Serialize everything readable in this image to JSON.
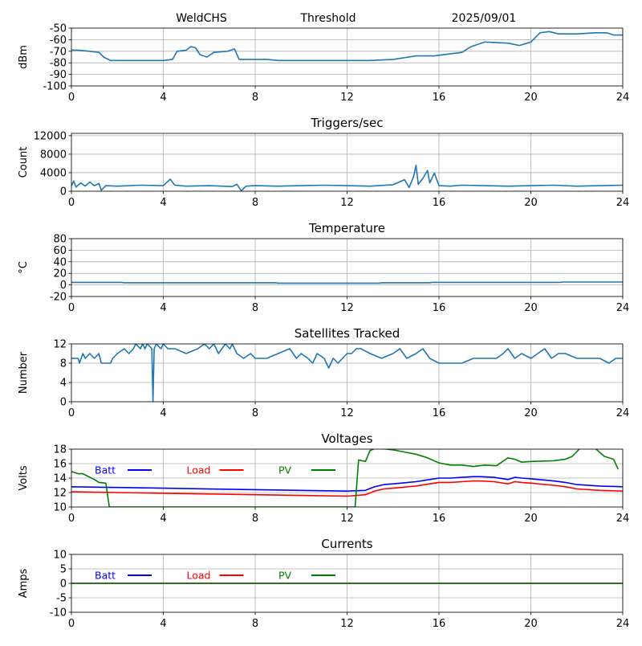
{
  "header": {
    "station": "WeldCHS",
    "mode": "Threshold",
    "date": "2025/09/01"
  },
  "chart_data": [
    {
      "type": "line",
      "title": "",
      "xlabel": "",
      "ylabel": "dBm",
      "xlim": [
        0,
        24
      ],
      "ylim": [
        -100,
        -50
      ],
      "xticks": [
        "0",
        "4",
        "8",
        "12",
        "16",
        "20",
        "24"
      ],
      "yticks": [
        "-100",
        "-90",
        "-80",
        "-70",
        "-60",
        "-50"
      ],
      "grid": true,
      "series": [
        {
          "color": "#1f77b4",
          "x": [
            0,
            0.3,
            0.8,
            1.2,
            1.4,
            1.7,
            2,
            3,
            4,
            4.4,
            4.6,
            5,
            5.2,
            5.4,
            5.6,
            5.9,
            6.2,
            6.8,
            7.1,
            7.3,
            8.5,
            9,
            10,
            11,
            12,
            12.5,
            13,
            14,
            15,
            15.8,
            16.2,
            17,
            17.4,
            18,
            19,
            19.5,
            20,
            20.4,
            20.8,
            21.2,
            22,
            22.8,
            23.3,
            23.6,
            24
          ],
          "y": [
            -69,
            -69,
            -70,
            -71,
            -75,
            -78,
            -78,
            -78,
            -78,
            -77,
            -70,
            -69,
            -66,
            -67,
            -73,
            -75,
            -71,
            -70,
            -68,
            -77,
            -77,
            -78,
            -78,
            -78,
            -78,
            -78,
            -78,
            -77,
            -74,
            -74,
            -73,
            -71,
            -66,
            -62,
            -63,
            -65,
            -62,
            -54,
            -53,
            -55,
            -55,
            -54,
            -54,
            -56,
            -56
          ]
        }
      ]
    },
    {
      "type": "line",
      "title": "Triggers/sec",
      "xlabel": "",
      "ylabel": "Count",
      "xlim": [
        0,
        24
      ],
      "ylim": [
        0,
        12500
      ],
      "xticks": [
        "0",
        "4",
        "8",
        "12",
        "16",
        "20",
        "24"
      ],
      "yticks": [
        "0",
        "4000",
        "8000",
        "12000"
      ],
      "grid": true,
      "series": [
        {
          "color": "#1f77b4",
          "x": [
            0,
            0.1,
            0.2,
            0.4,
            0.6,
            0.8,
            1.0,
            1.2,
            1.3,
            1.5,
            2,
            3,
            4,
            4.3,
            4.5,
            5,
            6,
            7,
            7.2,
            7.4,
            7.6,
            8,
            9,
            10,
            11,
            12,
            13,
            14,
            14.5,
            14.7,
            14.9,
            15.0,
            15.1,
            15.3,
            15.5,
            15.6,
            15.8,
            16,
            16.5,
            17,
            18,
            19,
            20,
            21,
            22,
            23,
            24
          ],
          "y": [
            1200,
            2200,
            900,
            1800,
            1100,
            2000,
            1200,
            1700,
            200,
            1200,
            1100,
            1300,
            1200,
            2600,
            1300,
            1100,
            1200,
            1000,
            1500,
            100,
            1100,
            1200,
            1100,
            1200,
            1300,
            1200,
            1100,
            1400,
            2500,
            800,
            3200,
            5600,
            1500,
            2800,
            4500,
            1800,
            3900,
            1200,
            1100,
            1300,
            1200,
            1100,
            1200,
            1300,
            1100,
            1200,
            1300
          ]
        }
      ]
    },
    {
      "type": "line",
      "title": "Temperature",
      "xlabel": "",
      "ylabel": "°C",
      "xlim": [
        0,
        24
      ],
      "ylim": [
        -20,
        80
      ],
      "xticks": [
        "0",
        "4",
        "8",
        "12",
        "16",
        "20",
        "24"
      ],
      "yticks": [
        "-20",
        "0",
        "20",
        "40",
        "60",
        "80"
      ],
      "grid": true,
      "series": [
        {
          "color": "#1f77b4",
          "x": [
            0,
            2.2,
            2.3,
            8.9,
            9.0,
            13.4,
            13.5,
            15.6,
            15.7,
            21.3,
            21.4,
            24
          ],
          "y": [
            4.5,
            4.5,
            3.8,
            3.8,
            3.0,
            3.0,
            3.8,
            3.8,
            4.5,
            4.5,
            5.0,
            5.0
          ]
        }
      ]
    },
    {
      "type": "line",
      "title": "Satellites Tracked",
      "xlabel": "",
      "ylabel": "Number",
      "xlim": [
        0,
        24
      ],
      "ylim": [
        0,
        12
      ],
      "xticks": [
        "0",
        "4",
        "8",
        "12",
        "16",
        "20",
        "24"
      ],
      "yticks": [
        "0",
        "4",
        "8",
        "12"
      ],
      "grid": true,
      "series": [
        {
          "color": "#1f77b4",
          "x": [
            0,
            0.3,
            0.35,
            0.5,
            0.6,
            0.8,
            1.0,
            1.2,
            1.3,
            1.7,
            1.8,
            2.0,
            2.3,
            2.5,
            2.7,
            2.8,
            3.0,
            3.1,
            3.2,
            3.3,
            3.5,
            3.55,
            3.6,
            3.7,
            3.9,
            4.0,
            4.2,
            4.5,
            5.0,
            5.5,
            5.8,
            6.0,
            6.2,
            6.4,
            6.7,
            6.9,
            7.0,
            7.2,
            7.5,
            7.8,
            8,
            8.5,
            9,
            9.5,
            9.8,
            10,
            10.3,
            10.5,
            10.7,
            11,
            11.2,
            11.4,
            11.6,
            11.8,
            12,
            12.2,
            12.4,
            12.6,
            13,
            13.5,
            14,
            14.3,
            14.6,
            15,
            15.3,
            15.6,
            16,
            16.5,
            17,
            17.5,
            18,
            18.5,
            18.8,
            19,
            19.3,
            19.6,
            20,
            20.3,
            20.6,
            20.9,
            21.2,
            21.5,
            22,
            22.5,
            23,
            23.4,
            23.7,
            24
          ],
          "y": [
            9,
            9,
            8,
            10,
            9,
            10,
            9,
            10,
            8,
            8,
            9,
            10,
            11,
            10,
            11,
            12,
            11,
            12,
            11,
            12,
            11,
            0,
            11,
            12,
            11,
            12,
            11,
            11,
            10,
            11,
            12,
            11,
            12,
            10,
            12,
            11,
            12,
            10,
            9,
            10,
            9,
            9,
            10,
            11,
            9,
            10,
            9,
            8,
            10,
            9,
            7,
            9,
            8,
            9,
            10,
            10,
            11,
            11,
            10,
            9,
            10,
            11,
            9,
            10,
            11,
            9,
            8,
            8,
            8,
            9,
            9,
            9,
            10,
            11,
            9,
            10,
            9,
            10,
            11,
            9,
            10,
            10,
            9,
            9,
            9,
            8,
            9,
            9
          ]
        }
      ]
    },
    {
      "type": "line",
      "title": "Voltages",
      "xlabel": "",
      "ylabel": "Volts",
      "xlim": [
        0,
        24
      ],
      "ylim": [
        10,
        18
      ],
      "xticks": [
        "0",
        "4",
        "8",
        "12",
        "16",
        "20",
        "24"
      ],
      "yticks": [
        "10",
        "12",
        "14",
        "16",
        "18"
      ],
      "grid": true,
      "legend": "top-left, inline",
      "series": [
        {
          "name": "Batt",
          "color": "#0000ff",
          "x": [
            0,
            2,
            4,
            8,
            12,
            12.8,
            13.2,
            13.6,
            14,
            15,
            15.6,
            16,
            16.5,
            17,
            17.5,
            17.8,
            18.4,
            19,
            19.3,
            19.6,
            20,
            21,
            21.5,
            22,
            23,
            24
          ],
          "y": [
            12.8,
            12.7,
            12.6,
            12.4,
            12.2,
            12.3,
            12.8,
            13.1,
            13.2,
            13.5,
            13.8,
            14.0,
            14.0,
            14.1,
            14.2,
            14.2,
            14.1,
            13.8,
            14.1,
            14.0,
            13.9,
            13.6,
            13.4,
            13.1,
            12.9,
            12.8
          ]
        },
        {
          "name": "Load",
          "color": "#ff0000",
          "x": [
            0,
            2,
            4,
            8,
            12,
            12.8,
            13.2,
            13.6,
            14,
            15,
            15.6,
            16,
            16.5,
            17,
            17.5,
            17.8,
            18.4,
            19,
            19.3,
            19.6,
            20,
            21,
            21.5,
            22,
            23,
            24
          ],
          "y": [
            12.1,
            12.0,
            11.9,
            11.7,
            11.5,
            11.7,
            12.2,
            12.5,
            12.6,
            12.9,
            13.2,
            13.4,
            13.4,
            13.5,
            13.6,
            13.6,
            13.5,
            13.2,
            13.5,
            13.4,
            13.3,
            13.0,
            12.8,
            12.5,
            12.3,
            12.2
          ]
        },
        {
          "name": "PV",
          "color": "#008000",
          "x": [
            0,
            0.3,
            0.5,
            1.0,
            1.2,
            1.5,
            1.65,
            12.35,
            12.5,
            12.8,
            13.0,
            13.3,
            13.7,
            14.0,
            14.5,
            15,
            15.5,
            16,
            16.5,
            17,
            17.5,
            18,
            18.5,
            19,
            19.3,
            19.6,
            20,
            21,
            21.5,
            21.8,
            22.2,
            22.8,
            23.2,
            23.6,
            23.8
          ],
          "y": [
            14.9,
            14.6,
            14.6,
            13.8,
            13.4,
            13.3,
            10,
            10,
            16.5,
            16.3,
            17.8,
            18.2,
            18.0,
            17.9,
            17.6,
            17.3,
            16.8,
            16.1,
            15.8,
            15.8,
            15.6,
            15.8,
            15.7,
            16.8,
            16.6,
            16.2,
            16.3,
            16.4,
            16.6,
            17.0,
            18.3,
            18.1,
            17.0,
            16.6,
            15.2
          ]
        }
      ]
    },
    {
      "type": "line",
      "title": "Currents",
      "xlabel": "",
      "ylabel": "Amps",
      "xlim": [
        0,
        24
      ],
      "ylim": [
        -10,
        10
      ],
      "xticks": [
        "0",
        "4",
        "8",
        "12",
        "16",
        "20",
        "24"
      ],
      "yticks": [
        "-10",
        "-5",
        "0",
        "5",
        "10"
      ],
      "grid": true,
      "legend": "top-left, inline",
      "series": [
        {
          "name": "Batt",
          "color": "#0000ff",
          "x": [
            0,
            24
          ],
          "y": [
            0,
            0
          ]
        },
        {
          "name": "Load",
          "color": "#ff0000",
          "x": [
            0,
            24
          ],
          "y": [
            0,
            0
          ]
        },
        {
          "name": "PV",
          "color": "#008000",
          "x": [
            0,
            24
          ],
          "y": [
            0,
            0
          ]
        }
      ]
    }
  ]
}
